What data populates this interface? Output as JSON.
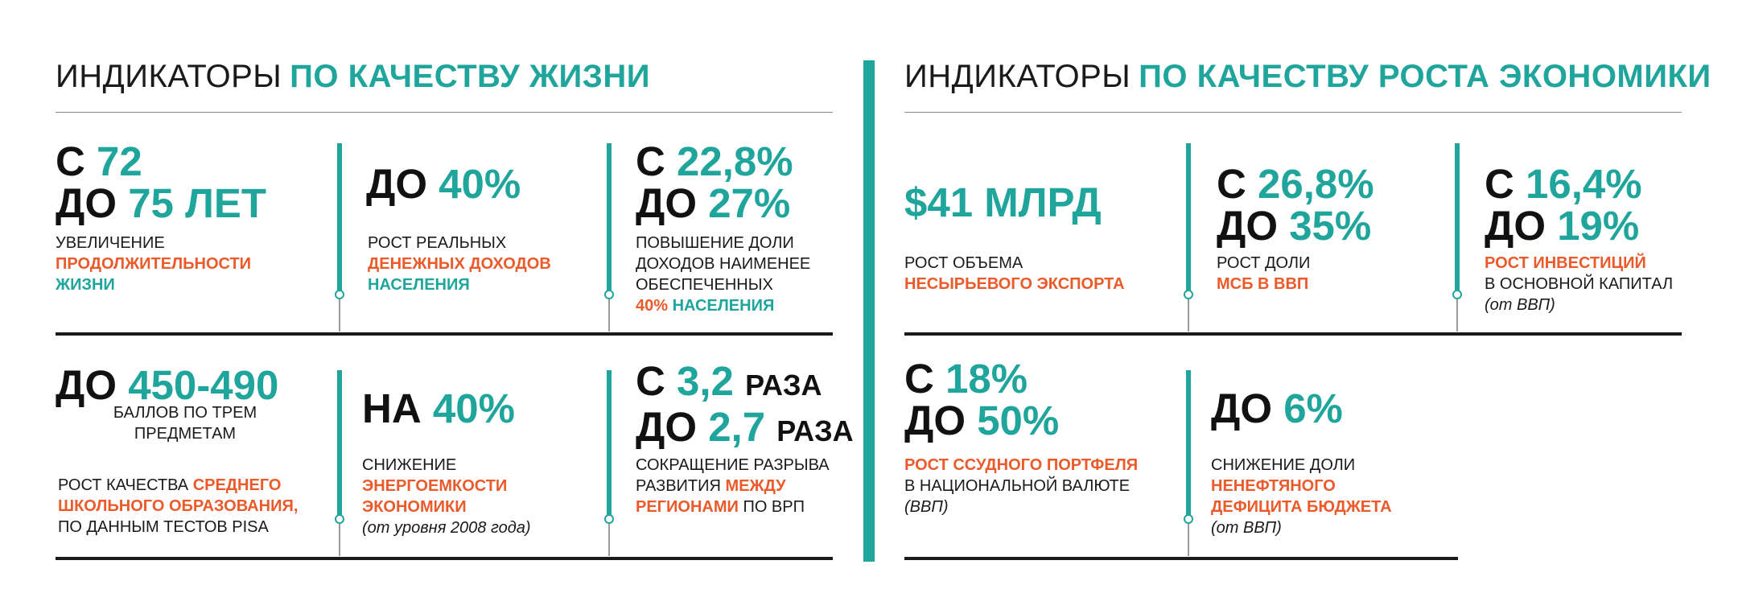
{
  "left_title": {
    "light": "ИНДИКАТОРЫ",
    "bold": "ПО КАЧЕСТВУ ЖИЗНИ"
  },
  "right_title": {
    "light": "ИНДИКАТОРЫ",
    "bold": "ПО КАЧЕСТВУ РОСТА ЭКОНОМИКИ"
  },
  "left_cards": {
    "c1": {
      "l1a": "С",
      "l1b": "72",
      "l2a": "ДО",
      "l2b": "75 ЛЕТ",
      "d1": "УВЕЛИЧЕНИЕ",
      "d2": "ПРОДОЛЖИТЕЛЬНОСТИ",
      "d3": "ЖИЗНИ"
    },
    "c2": {
      "a": "ДО",
      "b": "40%",
      "d1": "РОСТ РЕАЛЬНЫХ",
      "d2": "ДЕНЕЖНЫХ ДОХОДОВ",
      "d3": "НАСЕЛЕНИЯ"
    },
    "c3": {
      "l1a": "С",
      "l1b": "22,8%",
      "l2a": "ДО",
      "l2b": "27%",
      "d1": "ПОВЫШЕНИЕ ДОЛИ",
      "d2": "ДОХОДОВ НАИМЕНЕЕ",
      "d3": "ОБЕСПЕЧЕННЫХ",
      "d4a": "40%",
      "d4b": "НАСЕЛЕНИЯ"
    },
    "c4": {
      "a": "ДО",
      "b": "450-490",
      "sub1": "БАЛЛОВ ПО ТРЕМ",
      "sub2": "ПРЕДМЕТАМ",
      "d1a": "РОСТ КАЧЕСТВА",
      "d1b": "СРЕДНЕГО",
      "d2": "ШКОЛЬНОГО ОБРАЗОВАНИЯ,",
      "d3": "ПО ДАННЫМ ТЕСТОВ PISA"
    },
    "c5": {
      "a": "НА",
      "b": "40%",
      "d1": "СНИЖЕНИЕ",
      "d2": "ЭНЕРГОЕМКОСТИ",
      "d3": "ЭКОНОМИКИ",
      "note": "(от уровня 2008 года)"
    },
    "c6": {
      "l1a": "С",
      "l1b": "3,2",
      "l1c": "РАЗА",
      "l2a": "ДО",
      "l2b": "2,7",
      "l2c": "РАЗА",
      "d1": "СОКРАЩЕНИЕ РАЗРЫВА",
      "d2a": "РАЗВИТИЯ",
      "d2b": "МЕЖДУ",
      "d3a": "РЕГИОНАМИ",
      "d3b": "ПО ВРП"
    }
  },
  "right_cards": {
    "c1": {
      "a": "$41 МЛРД",
      "d1": "РОСТ ОБЪЕМА",
      "d2": "НЕСЫРЬЕВОГО ЭКСПОРТА"
    },
    "c2": {
      "l1a": "С",
      "l1b": "26,8%",
      "l2a": "ДО",
      "l2b": "35%",
      "d1": "РОСТ ДОЛИ",
      "d2": "МСБ В ВВП"
    },
    "c3": {
      "l1a": "С",
      "l1b": "16,4%",
      "l2a": "ДО",
      "l2b": "19%",
      "d1": "РОСТ ИНВЕСТИЦИЙ",
      "d2": "В ОСНОВНОЙ КАПИТАЛ",
      "note": "(от ВВП)"
    },
    "c4": {
      "l1a": "С",
      "l1b": "18%",
      "l2a": "ДО",
      "l2b": "50%",
      "d1": "РОСТ ССУДНОГО ПОРТФЕЛЯ",
      "d2": "В НАЦИОНАЛЬНОЙ ВАЛЮТЕ",
      "note": "(ВВП)"
    },
    "c5": {
      "a": "ДО",
      "b": "6%",
      "d1": "СНИЖЕНИЕ ДОЛИ",
      "d2": "НЕНЕФТЯНОГО",
      "d3": "ДЕФИЦИТА БЮДЖЕТА",
      "note": "(от ВВП)"
    }
  },
  "colors": {
    "teal": "#1fa59b",
    "orange": "#ea5a2a",
    "dark": "#1a1a1a"
  }
}
